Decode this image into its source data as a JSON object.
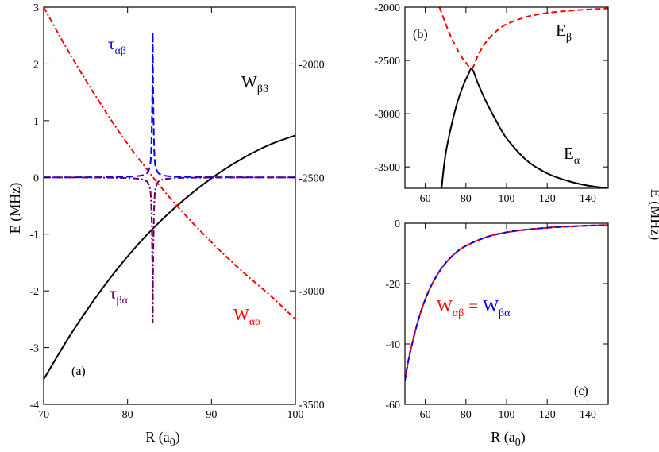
{
  "chart_data": [
    {
      "id": "a",
      "type": "line",
      "panel_label": "(a)",
      "xlabel": "R (a",
      "xlabel_sub": "0",
      "xlabel_tail": ")",
      "ylabel": "E (MHz)",
      "xlim": [
        70,
        100
      ],
      "ylim": [
        -4,
        3
      ],
      "y2lim": [
        -3500,
        -1750
      ],
      "xticks": [
        "70",
        "80",
        "90",
        "100"
      ],
      "xtick_values": [
        70,
        80,
        90,
        100
      ],
      "yticks": [
        "-4",
        "-3",
        "-2",
        "-1",
        "0",
        "1",
        "2",
        "3"
      ],
      "ytick_values": [
        -4,
        -3,
        -2,
        -1,
        0,
        1,
        2,
        3
      ],
      "y2ticks": [
        "-3500",
        "-3000",
        "-2500",
        "-2000"
      ],
      "y2tick_values": [
        -3500,
        -3000,
        -2500,
        -2000
      ],
      "series": [
        {
          "name": "W_ββ",
          "axis": "right",
          "color": "#000000",
          "dash": "",
          "x": [
            70,
            73,
            76,
            79,
            82,
            85,
            88,
            91,
            94,
            97,
            100
          ],
          "y": [
            -3390,
            -3205,
            -3040,
            -2893,
            -2765,
            -2655,
            -2560,
            -2478,
            -2410,
            -2355,
            -2315
          ]
        },
        {
          "name": "W_αα",
          "axis": "right",
          "color": "#ff0000",
          "dash": "7,3,2,3",
          "x": [
            70,
            73,
            76,
            79,
            82,
            85,
            88,
            91,
            94,
            97,
            100
          ],
          "y": [
            -1750,
            -1948,
            -2130,
            -2300,
            -2450,
            -2588,
            -2710,
            -2822,
            -2925,
            -3020,
            -3125
          ]
        },
        {
          "name": "τ_αβ",
          "axis": "left",
          "color": "#0000ff",
          "dash": "9,4",
          "x": [
            70,
            78,
            81,
            82,
            82.5,
            82.8,
            82.95,
            83.0,
            83.05,
            83.2,
            83.5,
            84,
            85,
            88,
            100
          ],
          "y": [
            0,
            0.005,
            0.02,
            0.05,
            0.12,
            0.4,
            1.5,
            2.55,
            1.5,
            0.4,
            0.12,
            0.05,
            0.02,
            0.005,
            0
          ]
        },
        {
          "name": "τ_βα",
          "axis": "left",
          "color": "#660066",
          "dash": "8,3,2,3",
          "x": [
            70,
            78,
            81,
            82,
            82.5,
            82.8,
            82.95,
            83.0,
            83.05,
            83.2,
            83.5,
            84,
            85,
            88,
            100
          ],
          "y": [
            0,
            -0.005,
            -0.02,
            -0.05,
            -0.12,
            -0.4,
            -1.5,
            -2.55,
            -1.5,
            -0.4,
            -0.12,
            -0.05,
            -0.02,
            -0.005,
            0
          ]
        }
      ],
      "labels": [
        {
          "main": "W",
          "sub": "ββ",
          "color": "#000000"
        },
        {
          "main": "W",
          "sub": "αα",
          "color": "#ff0000"
        },
        {
          "main": "τ",
          "sub": "αβ",
          "color": "#0000ff"
        },
        {
          "main": "τ",
          "sub": "βα",
          "color": "#660066"
        }
      ]
    },
    {
      "id": "b",
      "type": "line",
      "panel_label": "(b)",
      "xlim": [
        50,
        150
      ],
      "ylim": [
        -3700,
        -2000
      ],
      "xticks": [
        "60",
        "80",
        "100",
        "120",
        "140"
      ],
      "xtick_values": [
        60,
        80,
        100,
        120,
        140
      ],
      "yticks": [
        "-3500",
        "-3000",
        "-2500",
        "-2000"
      ],
      "ytick_values": [
        -3500,
        -3000,
        -2500,
        -2000
      ],
      "series": [
        {
          "name": "E_β",
          "color": "#ff0000",
          "dash": "7,4",
          "x": [
            67,
            72,
            77,
            80,
            83,
            86,
            90,
            95,
            100,
            110,
            120,
            130,
            140,
            150
          ],
          "y": [
            -2000,
            -2250,
            -2440,
            -2520,
            -2575,
            -2450,
            -2325,
            -2225,
            -2160,
            -2090,
            -2055,
            -2035,
            -2022,
            -2012
          ]
        },
        {
          "name": "E_α",
          "color": "#000000",
          "dash": "",
          "x": [
            68,
            70,
            73,
            76,
            79,
            81,
            83,
            86,
            90,
            95,
            100,
            110,
            120,
            130,
            140,
            150
          ],
          "y": [
            -3700,
            -3380,
            -3100,
            -2880,
            -2720,
            -2640,
            -2580,
            -2720,
            -2890,
            -3070,
            -3230,
            -3440,
            -3560,
            -3630,
            -3675,
            -3700
          ]
        }
      ],
      "ylabel": "E (MHz)",
      "labels": [
        {
          "main": "E",
          "sub": "β",
          "color": "#000000"
        },
        {
          "main": "E",
          "sub": "α",
          "color": "#000000"
        }
      ]
    },
    {
      "id": "c",
      "type": "line",
      "panel_label": "(c)",
      "xlabel": "R (a",
      "xlabel_sub": "0",
      "xlabel_tail": ")",
      "xlim": [
        50,
        150
      ],
      "ylim": [
        -60,
        0
      ],
      "xticks": [
        "60",
        "80",
        "100",
        "120",
        "140"
      ],
      "xtick_values": [
        60,
        80,
        100,
        120,
        140
      ],
      "yticks": [
        "-60",
        "-40",
        "-20",
        "0"
      ],
      "ytick_values": [
        -60,
        -40,
        -20,
        0
      ],
      "series": [
        {
          "name": "W_αβ",
          "color": "#ff0000",
          "dash": "",
          "x": [
            50,
            52,
            55,
            58,
            62,
            66,
            70,
            75,
            80,
            90,
            100,
            110,
            120,
            130,
            140,
            150
          ],
          "y": [
            -52,
            -44.5,
            -36,
            -29,
            -22,
            -17,
            -13.2,
            -9.8,
            -7.5,
            -4.6,
            -3.0,
            -2.1,
            -1.5,
            -1.1,
            -0.8,
            -0.6
          ]
        },
        {
          "name": "W_βα",
          "color": "#0000ff",
          "dash": "6,5",
          "x": [
            50,
            52,
            55,
            58,
            62,
            66,
            70,
            75,
            80,
            90,
            100,
            110,
            120,
            130,
            140,
            150
          ],
          "y": [
            -52,
            -44.5,
            -36,
            -29,
            -22,
            -17,
            -13.2,
            -9.8,
            -7.5,
            -4.6,
            -3.0,
            -2.1,
            -1.5,
            -1.1,
            -0.8,
            -0.6
          ]
        }
      ],
      "labels": [
        {
          "main": "W",
          "sub": "αβ",
          "color": "#ff0000"
        },
        {
          "main": "=",
          "sub": "",
          "color": "#ff0000"
        },
        {
          "main": "W",
          "sub": "βα",
          "color": "#0000ff"
        }
      ]
    }
  ]
}
